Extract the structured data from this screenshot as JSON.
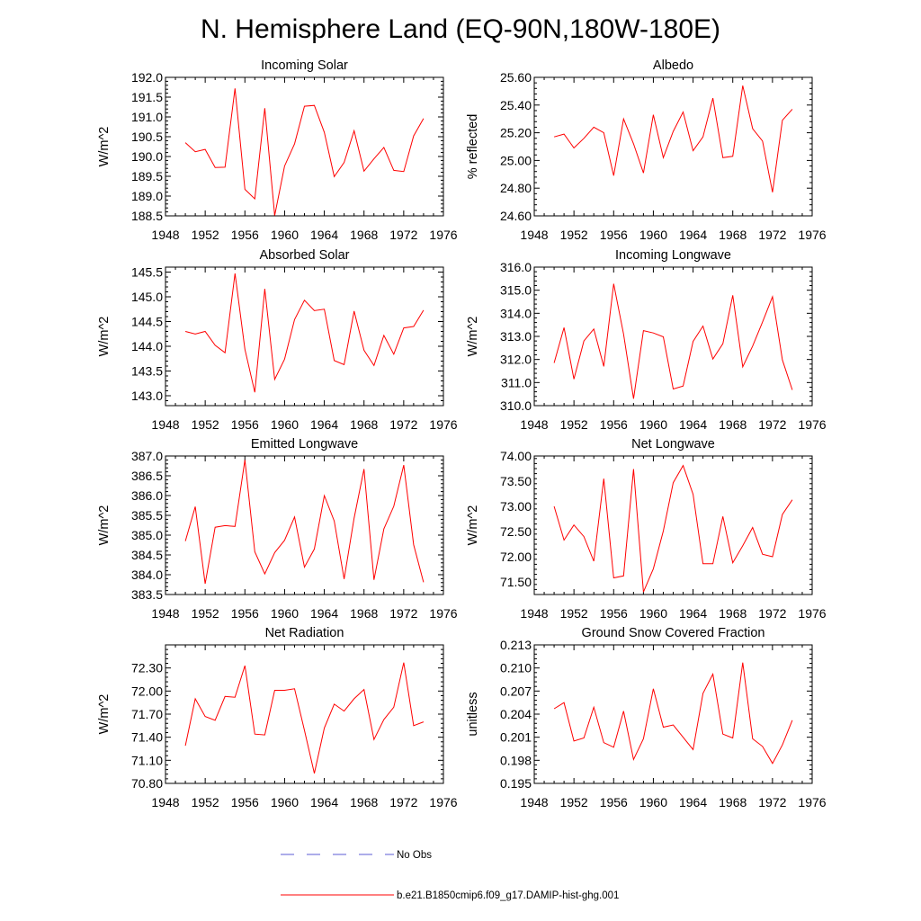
{
  "title": "N. Hemisphere Land (EQ-90N,180W-180E)",
  "legend": [
    {
      "label": "No Obs",
      "color": "#5b5bd6",
      "style": "dashed"
    },
    {
      "label": "b.e21.B1850cmip6.f09_g17.DAMIP-hist-ghg.001",
      "color": "#ff0000",
      "style": "solid"
    }
  ],
  "chart_data": [
    {
      "type": "line",
      "title": "Incoming Solar",
      "ylabel": "W/m^2",
      "xlim": [
        1948,
        1976
      ],
      "xticks": [
        1948,
        1952,
        1956,
        1960,
        1964,
        1968,
        1972,
        1976
      ],
      "ylim": [
        188.5,
        192.0
      ],
      "yticks": [
        188.5,
        189.0,
        189.5,
        190.0,
        190.5,
        191.0,
        191.5,
        192.0
      ],
      "ydecimals": 1,
      "x": [
        1950,
        1951,
        1952,
        1953,
        1954,
        1955,
        1956,
        1957,
        1958,
        1959,
        1960,
        1961,
        1962,
        1963,
        1964,
        1965,
        1966,
        1967,
        1968,
        1969,
        1970,
        1971,
        1972,
        1973,
        1974
      ],
      "series": [
        {
          "color": "#ff0000",
          "values": [
            190.35,
            190.12,
            190.18,
            189.72,
            189.73,
            191.72,
            189.17,
            188.93,
            191.22,
            188.51,
            189.76,
            190.32,
            191.27,
            191.29,
            190.61,
            189.49,
            189.85,
            190.65,
            189.63,
            189.94,
            190.23,
            189.65,
            189.62,
            190.52,
            190.96
          ]
        }
      ]
    },
    {
      "type": "line",
      "title": "Albedo",
      "ylabel": "% reflected",
      "xlim": [
        1948,
        1976
      ],
      "xticks": [
        1948,
        1952,
        1956,
        1960,
        1964,
        1968,
        1972,
        1976
      ],
      "ylim": [
        24.6,
        25.6
      ],
      "yticks": [
        24.6,
        24.8,
        25.0,
        25.2,
        25.4,
        25.6
      ],
      "ydecimals": 2,
      "x": [
        1950,
        1951,
        1952,
        1953,
        1954,
        1955,
        1956,
        1957,
        1958,
        1959,
        1960,
        1961,
        1962,
        1963,
        1964,
        1965,
        1966,
        1967,
        1968,
        1969,
        1970,
        1971,
        1972,
        1973,
        1974
      ],
      "series": [
        {
          "color": "#ff0000",
          "values": [
            25.17,
            25.19,
            25.09,
            25.16,
            25.24,
            25.2,
            24.89,
            25.3,
            25.12,
            24.91,
            25.33,
            25.02,
            25.21,
            25.35,
            25.07,
            25.17,
            25.45,
            25.02,
            25.03,
            25.54,
            25.23,
            25.14,
            24.77,
            25.29,
            25.37
          ]
        }
      ]
    },
    {
      "type": "line",
      "title": "Absorbed Solar",
      "ylabel": "W/m^2",
      "xlim": [
        1948,
        1976
      ],
      "xticks": [
        1948,
        1952,
        1956,
        1960,
        1964,
        1968,
        1972,
        1976
      ],
      "ylim": [
        142.8,
        145.6
      ],
      "yticks": [
        143.0,
        143.5,
        144.0,
        144.5,
        145.0,
        145.5
      ],
      "ydecimals": 1,
      "x": [
        1950,
        1951,
        1952,
        1953,
        1954,
        1955,
        1956,
        1957,
        1958,
        1959,
        1960,
        1961,
        1962,
        1963,
        1964,
        1965,
        1966,
        1967,
        1968,
        1969,
        1970,
        1971,
        1972,
        1973,
        1974
      ],
      "series": [
        {
          "color": "#ff0000",
          "values": [
            144.3,
            144.25,
            144.3,
            144.02,
            143.87,
            145.47,
            143.94,
            143.07,
            145.16,
            143.33,
            143.74,
            144.54,
            144.93,
            144.72,
            144.75,
            143.71,
            143.63,
            144.71,
            143.92,
            143.61,
            144.22,
            143.84,
            144.37,
            144.4,
            144.73
          ]
        }
      ]
    },
    {
      "type": "line",
      "title": "Incoming Longwave",
      "ylabel": "W/m^2",
      "xlim": [
        1948,
        1976
      ],
      "xticks": [
        1948,
        1952,
        1956,
        1960,
        1964,
        1968,
        1972,
        1976
      ],
      "ylim": [
        310.0,
        316.0
      ],
      "yticks": [
        310.0,
        311.0,
        312.0,
        313.0,
        314.0,
        315.0,
        316.0
      ],
      "ydecimals": 1,
      "x": [
        1950,
        1951,
        1952,
        1953,
        1954,
        1955,
        1956,
        1957,
        1958,
        1959,
        1960,
        1961,
        1962,
        1963,
        1964,
        1965,
        1966,
        1967,
        1968,
        1969,
        1970,
        1971,
        1972,
        1973,
        1974
      ],
      "series": [
        {
          "color": "#ff0000",
          "values": [
            311.85,
            313.38,
            311.15,
            312.8,
            313.32,
            311.7,
            315.28,
            313.1,
            310.3,
            313.25,
            313.15,
            312.98,
            310.72,
            310.85,
            312.78,
            313.45,
            312.02,
            312.68,
            314.78,
            311.68,
            312.58,
            313.62,
            314.72,
            311.98,
            310.68
          ]
        }
      ]
    },
    {
      "type": "line",
      "title": "Emitted Longwave",
      "ylabel": "W/m^2",
      "xlim": [
        1948,
        1976
      ],
      "xticks": [
        1948,
        1952,
        1956,
        1960,
        1964,
        1968,
        1972,
        1976
      ],
      "ylim": [
        383.5,
        387.0
      ],
      "yticks": [
        383.5,
        384.0,
        384.5,
        385.0,
        385.5,
        386.0,
        386.5,
        387.0
      ],
      "ydecimals": 1,
      "x": [
        1950,
        1951,
        1952,
        1953,
        1954,
        1955,
        1956,
        1957,
        1958,
        1959,
        1960,
        1961,
        1962,
        1963,
        1964,
        1965,
        1966,
        1967,
        1968,
        1969,
        1970,
        1971,
        1972,
        1973,
        1974
      ],
      "series": [
        {
          "color": "#ff0000",
          "values": [
            384.85,
            385.72,
            383.77,
            385.2,
            385.24,
            385.22,
            386.9,
            384.58,
            384.02,
            384.56,
            384.87,
            385.46,
            384.19,
            384.65,
            386.0,
            385.36,
            383.89,
            385.43,
            386.67,
            383.87,
            385.16,
            385.73,
            386.77,
            384.76,
            383.81
          ]
        }
      ]
    },
    {
      "type": "line",
      "title": "Net Longwave",
      "ylabel": "W/m^2",
      "xlim": [
        1948,
        1976
      ],
      "xticks": [
        1948,
        1952,
        1956,
        1960,
        1964,
        1968,
        1972,
        1976
      ],
      "ylim": [
        71.25,
        74.0
      ],
      "yticks": [
        71.5,
        72.0,
        72.5,
        73.0,
        73.5,
        74.0
      ],
      "ydecimals": 2,
      "x": [
        1950,
        1951,
        1952,
        1953,
        1954,
        1955,
        1956,
        1957,
        1958,
        1959,
        1960,
        1961,
        1962,
        1963,
        1964,
        1965,
        1966,
        1967,
        1968,
        1969,
        1970,
        1971,
        1972,
        1973,
        1974
      ],
      "series": [
        {
          "color": "#ff0000",
          "values": [
            73.0,
            72.33,
            72.63,
            72.4,
            71.91,
            73.55,
            71.58,
            71.62,
            73.74,
            71.3,
            71.76,
            72.51,
            73.47,
            73.81,
            73.24,
            71.86,
            71.86,
            72.8,
            71.88,
            72.22,
            72.58,
            72.05,
            72.0,
            72.84,
            73.13
          ]
        }
      ]
    },
    {
      "type": "line",
      "title": "Net Radiation",
      "ylabel": "W/m^2",
      "xlim": [
        1948,
        1976
      ],
      "xticks": [
        1948,
        1952,
        1956,
        1960,
        1964,
        1968,
        1972,
        1976
      ],
      "ylim": [
        70.8,
        72.6
      ],
      "yticks": [
        70.8,
        71.1,
        71.4,
        71.7,
        72.0,
        72.3
      ],
      "ydecimals": 2,
      "x": [
        1950,
        1951,
        1952,
        1953,
        1954,
        1955,
        1956,
        1957,
        1958,
        1959,
        1960,
        1961,
        1962,
        1963,
        1964,
        1965,
        1966,
        1967,
        1968,
        1969,
        1970,
        1971,
        1972,
        1973,
        1974
      ],
      "series": [
        {
          "color": "#ff0000",
          "values": [
            71.29,
            71.9,
            71.67,
            71.62,
            71.93,
            71.92,
            72.33,
            71.44,
            71.43,
            72.01,
            72.01,
            72.03,
            71.49,
            70.93,
            71.52,
            71.83,
            71.74,
            71.9,
            72.02,
            71.37,
            71.63,
            71.79,
            72.37,
            71.55,
            71.6
          ]
        }
      ]
    },
    {
      "type": "line",
      "title": "Ground Snow Covered Fraction",
      "ylabel": "unitless",
      "xlim": [
        1948,
        1976
      ],
      "xticks": [
        1948,
        1952,
        1956,
        1960,
        1964,
        1968,
        1972,
        1976
      ],
      "ylim": [
        0.195,
        0.213
      ],
      "yticks": [
        0.195,
        0.198,
        0.201,
        0.204,
        0.207,
        0.21,
        0.213
      ],
      "ydecimals": 3,
      "x": [
        1950,
        1951,
        1952,
        1953,
        1954,
        1955,
        1956,
        1957,
        1958,
        1959,
        1960,
        1961,
        1962,
        1963,
        1964,
        1965,
        1966,
        1967,
        1968,
        1969,
        1970,
        1971,
        1972,
        1973,
        1974
      ],
      "series": [
        {
          "color": "#ff0000",
          "values": [
            0.2047,
            0.2055,
            0.2005,
            0.2009,
            0.2049,
            0.2003,
            0.1997,
            0.2044,
            0.1981,
            0.2008,
            0.2073,
            0.2023,
            0.2026,
            0.201,
            0.1994,
            0.2067,
            0.2092,
            0.2014,
            0.2009,
            0.2107,
            0.2008,
            0.1998,
            0.1976,
            0.2,
            0.2032
          ]
        }
      ]
    }
  ]
}
